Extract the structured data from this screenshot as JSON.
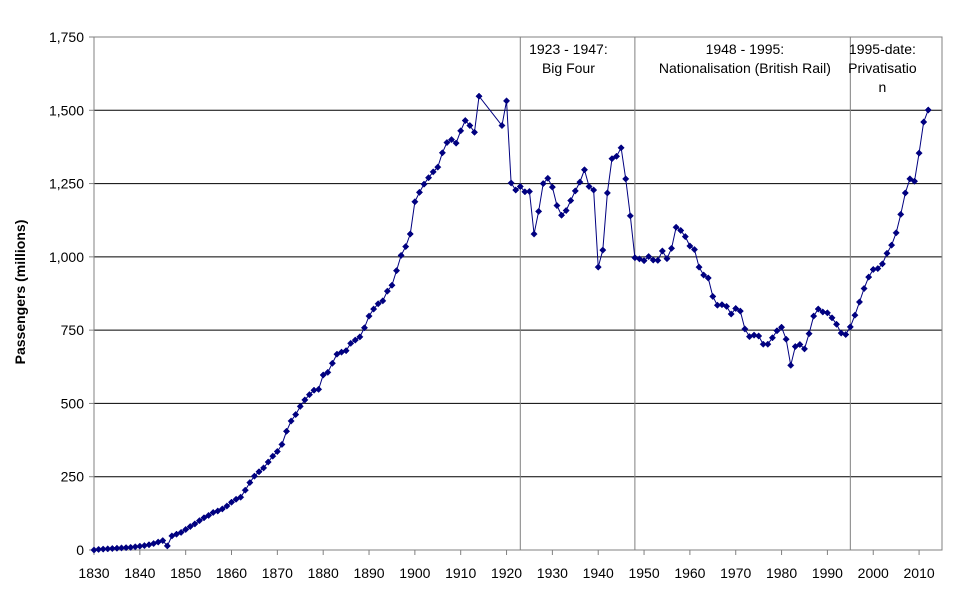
{
  "chart_data": {
    "type": "line",
    "title": "",
    "xlabel": "",
    "ylabel": "Passengers (millions)",
    "xlim": [
      1830,
      2015
    ],
    "ylim": [
      0,
      1750
    ],
    "x_ticks": [
      "1830",
      "1840",
      "1850",
      "1860",
      "1870",
      "1880",
      "1890",
      "1900",
      "1910",
      "1920",
      "1930",
      "1940",
      "1950",
      "1960",
      "1970",
      "1980",
      "1990",
      "2000",
      "2010"
    ],
    "y_ticks": [
      "0",
      "250",
      "500",
      "750",
      "1,000",
      "1,250",
      "1,500",
      "1,750"
    ],
    "grid": "horizontal",
    "line_color": "#000080",
    "marker": "diamond",
    "series": [
      {
        "points": [
          [
            1830,
            0
          ],
          [
            1831,
            2
          ],
          [
            1832,
            3
          ],
          [
            1833,
            4
          ],
          [
            1834,
            5
          ],
          [
            1835,
            6
          ],
          [
            1836,
            7
          ],
          [
            1837,
            8
          ],
          [
            1838,
            9
          ],
          [
            1839,
            11
          ],
          [
            1840,
            13
          ],
          [
            1841,
            15
          ],
          [
            1842,
            18
          ],
          [
            1843,
            22
          ],
          [
            1844,
            27
          ],
          [
            1845,
            32
          ],
          [
            1846,
            14
          ],
          [
            1847,
            48
          ],
          [
            1848,
            54
          ],
          [
            1849,
            60
          ],
          [
            1850,
            70
          ],
          [
            1851,
            80
          ],
          [
            1852,
            89
          ],
          [
            1853,
            100
          ],
          [
            1854,
            110
          ],
          [
            1855,
            118
          ],
          [
            1856,
            128
          ],
          [
            1857,
            133
          ],
          [
            1858,
            140
          ],
          [
            1859,
            150
          ],
          [
            1860,
            163
          ],
          [
            1861,
            173
          ],
          [
            1862,
            180
          ],
          [
            1863,
            204
          ],
          [
            1864,
            230
          ],
          [
            1865,
            252
          ],
          [
            1866,
            267
          ],
          [
            1867,
            280
          ],
          [
            1868,
            300
          ],
          [
            1869,
            320
          ],
          [
            1870,
            336
          ],
          [
            1871,
            360
          ],
          [
            1872,
            405
          ],
          [
            1873,
            440
          ],
          [
            1874,
            462
          ],
          [
            1875,
            490
          ],
          [
            1876,
            512
          ],
          [
            1877,
            530
          ],
          [
            1878,
            545
          ],
          [
            1879,
            548
          ],
          [
            1880,
            597
          ],
          [
            1881,
            606
          ],
          [
            1882,
            637
          ],
          [
            1883,
            668
          ],
          [
            1884,
            675
          ],
          [
            1885,
            680
          ],
          [
            1886,
            705
          ],
          [
            1887,
            716
          ],
          [
            1888,
            727
          ],
          [
            1889,
            758
          ],
          [
            1890,
            798
          ],
          [
            1891,
            822
          ],
          [
            1892,
            840
          ],
          [
            1893,
            850
          ],
          [
            1894,
            883
          ],
          [
            1895,
            903
          ],
          [
            1896,
            953
          ],
          [
            1897,
            1005
          ],
          [
            1898,
            1035
          ],
          [
            1899,
            1078
          ],
          [
            1900,
            1188
          ],
          [
            1901,
            1220
          ],
          [
            1902,
            1248
          ],
          [
            1903,
            1270
          ],
          [
            1904,
            1290
          ],
          [
            1905,
            1306
          ],
          [
            1906,
            1355
          ],
          [
            1907,
            1390
          ],
          [
            1908,
            1400
          ],
          [
            1909,
            1388
          ],
          [
            1910,
            1430
          ],
          [
            1911,
            1465
          ],
          [
            1912,
            1448
          ],
          [
            1913,
            1425
          ],
          [
            1914,
            1548
          ],
          [
            1919,
            1448
          ],
          [
            1920,
            1532
          ],
          [
            1921,
            1252
          ],
          [
            1922,
            1228
          ],
          [
            1923,
            1240
          ],
          [
            1924,
            1222
          ],
          [
            1925,
            1223
          ],
          [
            1926,
            1078
          ],
          [
            1927,
            1155
          ],
          [
            1928,
            1250
          ],
          [
            1929,
            1268
          ],
          [
            1930,
            1238
          ],
          [
            1931,
            1175
          ],
          [
            1932,
            1142
          ],
          [
            1933,
            1158
          ],
          [
            1934,
            1192
          ],
          [
            1935,
            1225
          ],
          [
            1936,
            1255
          ],
          [
            1937,
            1297
          ],
          [
            1938,
            1240
          ],
          [
            1939,
            1228
          ],
          [
            1940,
            965
          ],
          [
            1941,
            1023
          ],
          [
            1942,
            1218
          ],
          [
            1943,
            1335
          ],
          [
            1944,
            1343
          ],
          [
            1945,
            1372
          ],
          [
            1946,
            1266
          ],
          [
            1947,
            1140
          ],
          [
            1948,
            997
          ],
          [
            1949,
            993
          ],
          [
            1950,
            987
          ],
          [
            1951,
            1001
          ],
          [
            1952,
            989
          ],
          [
            1953,
            988
          ],
          [
            1954,
            1020
          ],
          [
            1955,
            994
          ],
          [
            1956,
            1029
          ],
          [
            1957,
            1101
          ],
          [
            1958,
            1090
          ],
          [
            1959,
            1069
          ],
          [
            1960,
            1037
          ],
          [
            1961,
            1025
          ],
          [
            1962,
            965
          ],
          [
            1963,
            938
          ],
          [
            1964,
            928
          ],
          [
            1965,
            865
          ],
          [
            1966,
            835
          ],
          [
            1967,
            837
          ],
          [
            1968,
            831
          ],
          [
            1969,
            805
          ],
          [
            1970,
            824
          ],
          [
            1971,
            815
          ],
          [
            1972,
            754
          ],
          [
            1973,
            728
          ],
          [
            1974,
            733
          ],
          [
            1975,
            730
          ],
          [
            1976,
            702
          ],
          [
            1977,
            702
          ],
          [
            1978,
            724
          ],
          [
            1979,
            748
          ],
          [
            1980,
            760
          ],
          [
            1981,
            719
          ],
          [
            1982,
            630
          ],
          [
            1983,
            694
          ],
          [
            1984,
            701
          ],
          [
            1985,
            686
          ],
          [
            1986,
            738
          ],
          [
            1987,
            798
          ],
          [
            1988,
            822
          ],
          [
            1989,
            812
          ],
          [
            1990,
            809
          ],
          [
            1991,
            792
          ],
          [
            1992,
            770
          ],
          [
            1993,
            740
          ],
          [
            1994,
            735
          ],
          [
            1995,
            761
          ],
          [
            1996,
            801
          ],
          [
            1997,
            846
          ],
          [
            1998,
            892
          ],
          [
            1999,
            931
          ],
          [
            2000,
            957
          ],
          [
            2001,
            960
          ],
          [
            2002,
            976
          ],
          [
            2003,
            1012
          ],
          [
            2004,
            1040
          ],
          [
            2005,
            1082
          ],
          [
            2006,
            1145
          ],
          [
            2007,
            1218
          ],
          [
            2008,
            1266
          ],
          [
            2009,
            1258
          ],
          [
            2010,
            1354
          ],
          [
            2011,
            1460
          ],
          [
            2012,
            1501
          ]
        ]
      }
    ],
    "eras": [
      {
        "start": 1923,
        "label_line1": "1923 - 1947:",
        "label_line2": "Big Four",
        "label_center": 1933.5
      },
      {
        "start": 1948,
        "label_line1": "1948 - 1995:",
        "label_line2": "Nationalisation (British Rail)",
        "label_center": 1972
      },
      {
        "start": 1995,
        "label_line1": "1995-date:",
        "label_line2": "Privatisatio",
        "label_line3": "n",
        "label_center": 2002
      }
    ]
  }
}
